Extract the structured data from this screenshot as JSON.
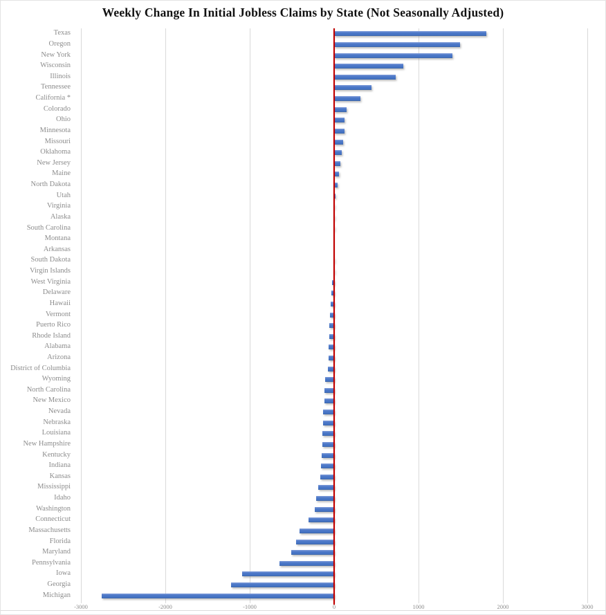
{
  "title": "Weekly Change In Initial Jobless Claims by State (Not Seasonally Adjusted)",
  "colors": {
    "bar": "#4472C4",
    "bar_highlight": "#7D9BD9",
    "bar_shadow_edge": "#3A639F",
    "zero_line": "#C00000",
    "gridline": "#D9D9D9",
    "axis_text": "#8C8C8C",
    "title_text": "#111111",
    "background": "#FFFFFF"
  },
  "chart_data": {
    "type": "bar",
    "orientation": "horizontal",
    "title": "Weekly Change In Initial Jobless Claims by State (Not Seasonally Adjusted)",
    "xlabel": "",
    "ylabel": "",
    "xlim": [
      -3000,
      3000
    ],
    "x_ticks": [
      -3000,
      -2000,
      -1000,
      0,
      1000,
      2000,
      3000
    ],
    "x_tick_labels": [
      "-3000",
      "-2000",
      "-1000",
      "0",
      "1000",
      "2000",
      "3000"
    ],
    "grid": "vertical",
    "zero_line": true,
    "legend_position": "none",
    "categories": [
      "Texas",
      "Oregon",
      "New York",
      "Wisconsin",
      "Illinois",
      "Tennessee",
      "California *",
      "Colorado",
      "Ohio",
      "Minnesota",
      "Missouri",
      "Oklahoma",
      "New Jersey",
      "Maine",
      "North Dakota",
      "Utah",
      "Virginia",
      "Alaska",
      "South Carolina",
      "Montana",
      "Arkansas",
      "South Dakota",
      "Virgin Islands",
      "West Virginia",
      "Delaware",
      "Hawaii",
      "Vermont",
      "Puerto Rico",
      "Rhode Island",
      "Alabama",
      "Arizona",
      "District of Columbia",
      "Wyoming",
      "North Carolina",
      "New Mexico",
      "Nevada",
      "Nebraska",
      "Louisiana",
      "New Hampshire",
      "Kentucky",
      "Indiana",
      "Kansas",
      "Mississippi",
      "Idaho",
      "Washington",
      "Connecticut",
      "Massachusetts",
      "Florida",
      "Maryland",
      "Pennsylvania",
      "Iowa",
      "Georgia",
      "Michigan"
    ],
    "values": [
      1800,
      1490,
      1400,
      820,
      730,
      440,
      310,
      146,
      126,
      124,
      110,
      92,
      72,
      56,
      37,
      15,
      11,
      9,
      3,
      1,
      0,
      -2,
      -4,
      -28,
      -35,
      -41,
      -49,
      -55,
      -60,
      -64,
      -69,
      -77,
      -104,
      -112,
      -116,
      -128,
      -132,
      -138,
      -143,
      -150,
      -155,
      -168,
      -188,
      -212,
      -233,
      -307,
      -411,
      -452,
      -507,
      -645,
      -1090,
      -1220,
      -2757
    ]
  }
}
